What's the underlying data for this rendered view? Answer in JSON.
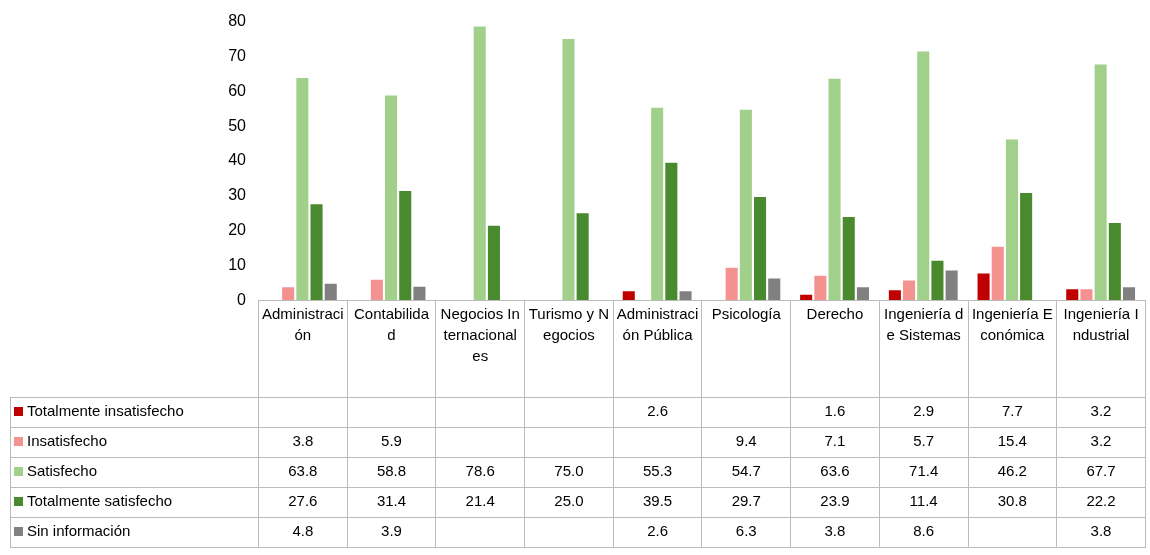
{
  "chart_data": {
    "type": "bar",
    "categories": [
      "Administración",
      "Contabilidad",
      "Negocios Internacionales",
      "Turismo y Negocios",
      "Administración Pública",
      "Psicología",
      "Derecho",
      "Ingeniería de Sistemas",
      "Ingeniería Económica",
      "Ingeniería Industrial"
    ],
    "series": [
      {
        "name": "Totalmente insatisfecho",
        "color": "#c00000",
        "values": [
          null,
          null,
          null,
          null,
          2.6,
          null,
          1.6,
          2.9,
          7.7,
          3.2
        ],
        "value_labels": [
          null,
          null,
          null,
          null,
          "2.6",
          null,
          "1.6",
          "2.9",
          "7.7",
          "3.2"
        ]
      },
      {
        "name": "Insatisfecho",
        "color": "#f4928f",
        "values": [
          3.8,
          5.9,
          null,
          null,
          null,
          9.4,
          7.1,
          5.7,
          15.4,
          3.2
        ],
        "value_labels": [
          "3.8",
          "5.9",
          null,
          null,
          null,
          "9.4",
          "7.1",
          "5.7",
          "15.4",
          "3.2"
        ]
      },
      {
        "name": "Satisfecho",
        "color": "#a0d08a",
        "values": [
          63.8,
          58.8,
          78.6,
          75.0,
          55.3,
          54.7,
          63.6,
          71.4,
          46.2,
          67.7
        ],
        "value_labels": [
          "63.8",
          "58.8",
          "78.6",
          "75.0",
          "55.3",
          "54.7",
          "63.6",
          "71.4",
          "46.2",
          "67.7"
        ]
      },
      {
        "name": "Totalmente satisfecho",
        "color": "#4a8a2f",
        "values": [
          27.6,
          31.4,
          21.4,
          25.0,
          39.5,
          29.7,
          23.9,
          11.4,
          30.8,
          22.2
        ],
        "value_labels": [
          "27.6",
          "31.4",
          "21.4",
          "25.0",
          "39.5",
          "29.7",
          "23.9",
          "11.4",
          "30.8",
          "22.2"
        ]
      },
      {
        "name": "Sin información",
        "color": "#808080",
        "values": [
          4.8,
          3.9,
          null,
          null,
          2.6,
          6.3,
          3.8,
          8.6,
          null,
          3.8
        ],
        "value_labels": [
          "4.8",
          "3.9",
          null,
          null,
          "2.6",
          "6.3",
          "3.8",
          "8.6",
          null,
          "3.8"
        ]
      }
    ],
    "ylim": [
      0,
      80
    ],
    "yticks": [
      0,
      10,
      20,
      30,
      40,
      50,
      60,
      70,
      80
    ],
    "grid": false,
    "legend": "bottom left",
    "data_labels": true
  }
}
